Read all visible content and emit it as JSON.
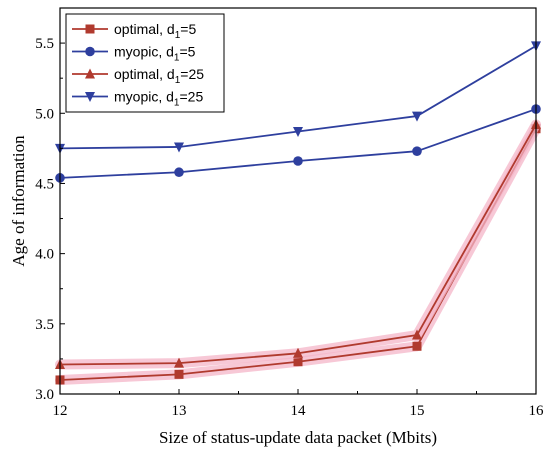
{
  "chart_data": {
    "type": "line",
    "xlabel": "Size of status-update data packet (Mbits)",
    "ylabel": "Age of information",
    "xlim": [
      12,
      16
    ],
    "ylim": [
      3.0,
      5.75
    ],
    "x_ticks": [
      "12",
      "13",
      "14",
      "15",
      "16"
    ],
    "y_ticks": [
      "3.0",
      "3.5",
      "4.0",
      "4.5",
      "5.0",
      "5.5"
    ],
    "grid": false,
    "legend_position": "top-left",
    "x": [
      12,
      13,
      14,
      15,
      16
    ],
    "series": [
      {
        "name": "optimal, d1=5",
        "name_main": "optimal, d",
        "name_sub": "1",
        "name_tail": "=5",
        "color": "#b03a2e",
        "marker": "square",
        "glow": true,
        "values": [
          3.1,
          3.14,
          3.23,
          3.34,
          4.89
        ]
      },
      {
        "name": "myopic, d1=5",
        "name_main": "myopic, d",
        "name_sub": "1",
        "name_tail": "=5",
        "color": "#2e3f9e",
        "marker": "circle",
        "glow": false,
        "values": [
          4.54,
          4.58,
          4.66,
          4.73,
          5.03
        ]
      },
      {
        "name": "optimal, d1=25",
        "name_main": "optimal, d",
        "name_sub": "1",
        "name_tail": "=25",
        "color": "#b03a2e",
        "marker": "triangle-up",
        "glow": true,
        "values": [
          3.21,
          3.22,
          3.29,
          3.42,
          4.92
        ]
      },
      {
        "name": "myopic, d1=25",
        "name_main": "myopic, d",
        "name_sub": "1",
        "name_tail": "=25",
        "color": "#2e3f9e",
        "marker": "triangle-down",
        "glow": false,
        "values": [
          4.75,
          4.76,
          4.87,
          4.98,
          5.48
        ]
      }
    ]
  }
}
